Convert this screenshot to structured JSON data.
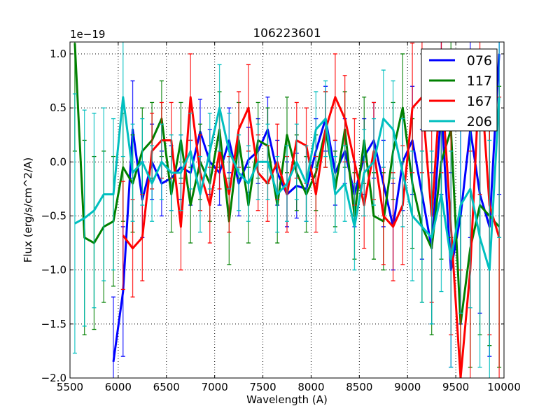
{
  "chart_data": {
    "type": "line",
    "title": "106223601",
    "xlabel": "Wavelength (A)",
    "ylabel": "Flux (erg/s/cm^2/A)",
    "y_scale_label": "1e−19",
    "xlim": [
      5500,
      10000
    ],
    "ylim": [
      -2.0,
      1.11
    ],
    "grid": true,
    "legend_position": "top-right",
    "xticks": [
      5500,
      6000,
      6500,
      7000,
      7500,
      8000,
      8500,
      9000,
      9500,
      10000
    ],
    "xtick_labels": [
      "5500",
      "6000",
      "6500",
      "7000",
      "7500",
      "8000",
      "8500",
      "9000",
      "9500",
      "10000"
    ],
    "yticks": [
      1.0,
      0.5,
      0.0,
      -0.5,
      -1.0,
      -1.5,
      -2.0
    ],
    "ytick_labels": [
      "1.0",
      "0.5",
      "0.0",
      "−0.5",
      "−1.0",
      "−1.5",
      "−2.0"
    ],
    "x": [
      5550,
      5650,
      5750,
      5850,
      5950,
      6050,
      6150,
      6250,
      6350,
      6450,
      6550,
      6650,
      6750,
      6850,
      6950,
      7050,
      7150,
      7250,
      7350,
      7450,
      7550,
      7650,
      7750,
      7850,
      7950,
      8050,
      8150,
      8250,
      8350,
      8450,
      8550,
      8650,
      8750,
      8850,
      8950,
      9050,
      9150,
      9250,
      9350,
      9450,
      9550,
      9650,
      9750,
      9850,
      9950
    ],
    "series": [
      {
        "name": "076",
        "color": "#0000ff",
        "values": [
          null,
          null,
          null,
          null,
          -1.85,
          -1.2,
          0.3,
          -0.35,
          0.0,
          -0.2,
          -0.15,
          -0.05,
          -0.1,
          0.28,
          0.0,
          -0.1,
          0.2,
          -0.2,
          0.02,
          0.1,
          0.3,
          -0.1,
          -0.3,
          -0.22,
          -0.25,
          0.1,
          0.4,
          -0.1,
          0.1,
          -0.3,
          0.05,
          0.2,
          -0.2,
          -0.6,
          0.0,
          0.2,
          -0.3,
          -0.8,
          0.5,
          -1.0,
          -0.5,
          0.3,
          -0.3,
          -0.6,
          1.0
        ],
        "err": [
          null,
          null,
          null,
          null,
          0.6,
          0.6,
          0.45,
          0.35,
          0.35,
          0.3,
          0.3,
          0.3,
          0.3,
          0.3,
          0.3,
          0.3,
          0.3,
          0.3,
          0.3,
          0.3,
          0.3,
          0.3,
          0.3,
          0.3,
          0.3,
          0.3,
          0.3,
          0.3,
          0.3,
          0.3,
          0.35,
          0.35,
          0.4,
          0.4,
          0.45,
          0.5,
          0.6,
          0.7,
          0.8,
          0.9,
          1.0,
          1.0,
          1.1,
          1.2,
          1.3
        ]
      },
      {
        "name": "117",
        "color": "#008000",
        "values": [
          1.1,
          -0.7,
          -0.75,
          -0.6,
          -0.55,
          -0.05,
          -0.2,
          0.1,
          0.2,
          0.4,
          -0.3,
          0.2,
          -0.4,
          0.0,
          -0.2,
          0.3,
          -0.55,
          0.2,
          -0.4,
          0.2,
          0.15,
          -0.4,
          0.25,
          -0.1,
          -0.3,
          -0.1,
          0.3,
          -0.25,
          0.3,
          -0.5,
          0.2,
          -0.5,
          -0.55,
          0.1,
          0.5,
          -0.2,
          -0.6,
          -0.8,
          0.0,
          0.3,
          -1.5,
          -0.8,
          -0.4,
          -0.5,
          -0.6
        ],
        "err": [
          1.0,
          0.9,
          0.8,
          0.7,
          0.6,
          0.5,
          0.45,
          0.4,
          0.35,
          0.35,
          0.35,
          0.35,
          0.35,
          0.35,
          0.35,
          0.35,
          0.4,
          0.35,
          0.35,
          0.35,
          0.35,
          0.35,
          0.35,
          0.35,
          0.35,
          0.35,
          0.35,
          0.35,
          0.35,
          0.4,
          0.4,
          0.4,
          0.45,
          0.45,
          0.5,
          0.6,
          0.7,
          0.8,
          0.9,
          1.0,
          1.0,
          1.1,
          1.2,
          1.2,
          1.3
        ]
      },
      {
        "name": "167",
        "color": "#ff0000",
        "values": [
          null,
          null,
          null,
          null,
          null,
          -0.68,
          -0.8,
          -0.7,
          0.1,
          0.2,
          0.2,
          -0.6,
          0.6,
          -0.1,
          -0.4,
          0.1,
          -0.3,
          0.3,
          0.5,
          -0.1,
          -0.2,
          0.0,
          -0.3,
          0.2,
          0.15,
          -0.3,
          0.3,
          0.6,
          0.4,
          0.0,
          -0.4,
          0.1,
          -0.5,
          -0.6,
          -0.4,
          0.5,
          0.6,
          -0.5,
          0.8,
          -0.6,
          -2.0,
          -1.0,
          0.9,
          -0.4,
          -0.7
        ],
        "err": [
          null,
          null,
          null,
          null,
          null,
          0.5,
          0.45,
          0.4,
          0.35,
          0.35,
          0.35,
          0.4,
          0.4,
          0.35,
          0.35,
          0.35,
          0.35,
          0.35,
          0.4,
          0.35,
          0.35,
          0.35,
          0.35,
          0.35,
          0.35,
          0.35,
          0.35,
          0.4,
          0.4,
          0.4,
          0.4,
          0.45,
          0.45,
          0.5,
          0.55,
          0.6,
          0.7,
          0.8,
          0.9,
          1.0,
          1.0,
          1.1,
          1.2,
          1.2,
          1.3
        ]
      },
      {
        "name": "206",
        "color": "#00bfbf",
        "values": [
          -0.57,
          -0.52,
          -0.45,
          -0.3,
          -0.3,
          0.6,
          -0.1,
          0.0,
          -0.2,
          0.0,
          -0.1,
          -0.1,
          0.1,
          -0.3,
          0.1,
          0.5,
          0.1,
          -0.1,
          -0.2,
          0.0,
          0.0,
          -0.3,
          -0.2,
          0.0,
          -0.2,
          0.3,
          0.4,
          -0.3,
          -0.2,
          -0.6,
          -0.1,
          0.0,
          0.4,
          0.3,
          -0.1,
          -0.5,
          -0.6,
          -0.7,
          -0.3,
          -0.9,
          -0.4,
          -0.25,
          -0.7,
          -1.0,
          0.6
        ],
        "err": [
          1.2,
          1.0,
          0.9,
          0.8,
          0.7,
          0.55,
          0.45,
          0.4,
          0.35,
          0.35,
          0.35,
          0.35,
          0.35,
          0.35,
          0.35,
          0.4,
          0.35,
          0.35,
          0.35,
          0.35,
          0.35,
          0.35,
          0.35,
          0.35,
          0.35,
          0.35,
          0.35,
          0.35,
          0.35,
          0.4,
          0.4,
          0.4,
          0.45,
          0.45,
          0.5,
          0.6,
          0.7,
          0.8,
          0.9,
          1.0,
          1.0,
          1.1,
          1.2,
          1.2,
          1.3
        ]
      }
    ]
  }
}
